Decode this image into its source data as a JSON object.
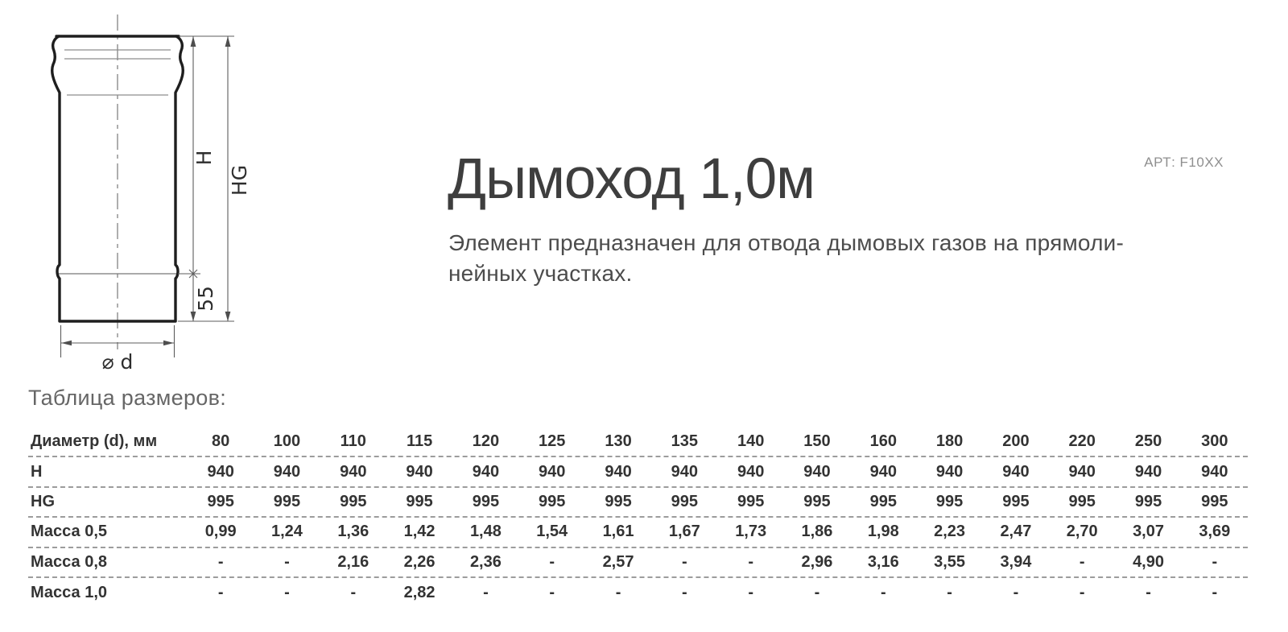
{
  "header": {
    "title": "Дымоход 1,0м",
    "art": "АРТ: F10XX",
    "description_line1": "Элемент предназначен для отвода дымовых газов на прямоли-",
    "description_line2": "нейных участках."
  },
  "drawing": {
    "labels": {
      "h": "H",
      "hg": "HG",
      "s55": "55",
      "diameter": "⌀ d"
    }
  },
  "table": {
    "caption": "Таблица размеров:",
    "rows": [
      {
        "label": "Диаметр (d), мм",
        "values": [
          "80",
          "100",
          "110",
          "115",
          "120",
          "125",
          "130",
          "135",
          "140",
          "150",
          "160",
          "180",
          "200",
          "220",
          "250",
          "300"
        ]
      },
      {
        "label": "H",
        "values": [
          "940",
          "940",
          "940",
          "940",
          "940",
          "940",
          "940",
          "940",
          "940",
          "940",
          "940",
          "940",
          "940",
          "940",
          "940",
          "940"
        ]
      },
      {
        "label": "HG",
        "values": [
          "995",
          "995",
          "995",
          "995",
          "995",
          "995",
          "995",
          "995",
          "995",
          "995",
          "995",
          "995",
          "995",
          "995",
          "995",
          "995"
        ]
      },
      {
        "label": "Масса 0,5",
        "values": [
          "0,99",
          "1,24",
          "1,36",
          "1,42",
          "1,48",
          "1,54",
          "1,61",
          "1,67",
          "1,73",
          "1,86",
          "1,98",
          "2,23",
          "2,47",
          "2,70",
          "3,07",
          "3,69"
        ]
      },
      {
        "label": "Масса 0,8",
        "values": [
          "-",
          "-",
          "2,16",
          "2,26",
          "2,36",
          "-",
          "2,57",
          "-",
          "-",
          "2,96",
          "3,16",
          "3,55",
          "3,94",
          "-",
          "4,90",
          "-"
        ]
      },
      {
        "label": "Масса 1,0",
        "values": [
          "-",
          "-",
          "-",
          "2,82",
          "-",
          "-",
          "-",
          "-",
          "-",
          "-",
          "-",
          "-",
          "-",
          "-",
          "-",
          "-"
        ]
      }
    ]
  },
  "colors": {
    "background": "#ffffff",
    "title_text": "#3e3e3e",
    "body_text": "#4c4c4c",
    "muted_text": "#8f8f8f",
    "table_text": "#333333",
    "dashed_rule": "#9c9c9c",
    "drawing_outline": "#1e1e1e",
    "dimension_line": "#5d5d5d"
  }
}
